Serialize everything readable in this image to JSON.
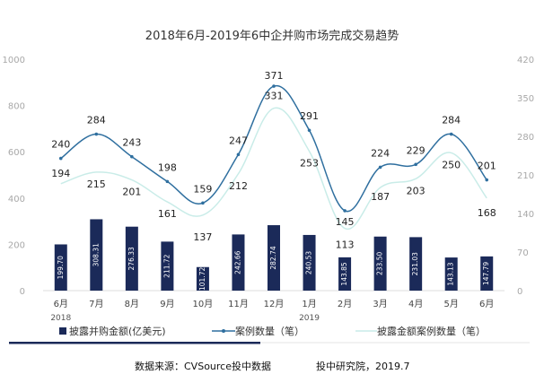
{
  "chart_data": {
    "type": "bar",
    "title": "2018年6月-2019年6中企并购市场完成交易趋势",
    "categories": [
      "6月",
      "7月",
      "8月",
      "9月",
      "10月",
      "11月",
      "12月",
      "1月",
      "2月",
      "3月",
      "4月",
      "5月",
      "6月"
    ],
    "year_labels": [
      {
        "category_index": 0,
        "text": "2018"
      },
      {
        "category_index": 7,
        "text": "2019"
      }
    ],
    "left_axis": {
      "ylim": [
        0,
        1000
      ],
      "ticks": [
        "0",
        "200",
        "400",
        "600",
        "800",
        "1000"
      ]
    },
    "right_axis": {
      "ylim": [
        0,
        420
      ],
      "ticks": [
        "0",
        "70",
        "140",
        "210",
        "280",
        "350",
        "420"
      ]
    },
    "series": [
      {
        "name": "披露并购金额(亿美元)",
        "type": "bar",
        "axis": "left",
        "color": "#1b2a59",
        "values": [
          199.7,
          308.31,
          276.33,
          211.72,
          101.72,
          242.66,
          282.74,
          240.53,
          143.85,
          233.5,
          231.03,
          143.13,
          147.79
        ],
        "labels": [
          "199.70",
          "308.31",
          "276.33",
          "211.72",
          "101.72",
          "242.66",
          "282.74",
          "240.53",
          "143.85",
          "233.50",
          "231.03",
          "143.13",
          "147.79"
        ]
      },
      {
        "name": "案例数量（笔）",
        "type": "line",
        "axis": "right",
        "color": "#2f6f9f",
        "values": [
          240,
          284,
          243,
          198,
          159,
          247,
          371,
          291,
          145,
          224,
          229,
          284,
          201
        ]
      },
      {
        "name": "披露金额案例数量（笔）",
        "type": "line",
        "axis": "right",
        "color": "#c9ece8",
        "values": [
          194,
          215,
          201,
          161,
          137,
          212,
          331,
          253,
          113,
          187,
          203,
          250,
          168
        ]
      }
    ]
  },
  "source_text": "数据来源：CVSource投中数据",
  "org_text": "投中研究院，2019.7"
}
